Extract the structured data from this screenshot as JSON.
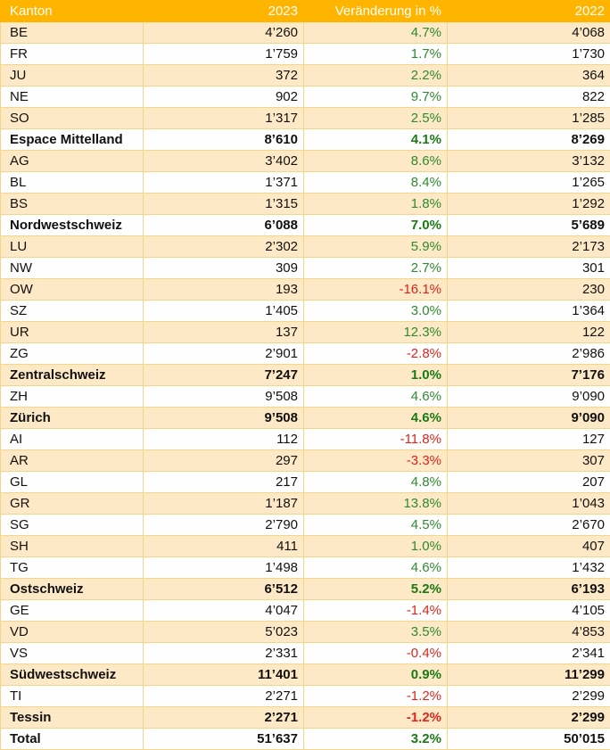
{
  "header": {
    "col1": "Kanton",
    "col2": "2023",
    "col3": "Veränderung in %",
    "col4": "2022"
  },
  "colors": {
    "header_bg": "#ffb400",
    "band": "#fde9c6",
    "positive": "#2e8b2e",
    "negative": "#e0241b"
  },
  "rows": [
    {
      "kanton": "BE",
      "y2023": "4’260",
      "change": "4.7%",
      "y2022": "4’068",
      "type": "normal",
      "sign": "pos"
    },
    {
      "kanton": "FR",
      "y2023": "1’759",
      "change": "1.7%",
      "y2022": "1’730",
      "type": "normal",
      "sign": "pos"
    },
    {
      "kanton": "JU",
      "y2023": "372",
      "change": "2.2%",
      "y2022": "364",
      "type": "normal",
      "sign": "pos"
    },
    {
      "kanton": "NE",
      "y2023": "902",
      "change": "9.7%",
      "y2022": "822",
      "type": "normal",
      "sign": "pos"
    },
    {
      "kanton": "SO",
      "y2023": "1’317",
      "change": "2.5%",
      "y2022": "1’285",
      "type": "normal",
      "sign": "pos"
    },
    {
      "kanton": "Espace Mittelland",
      "y2023": "8’610",
      "change": "4.1%",
      "y2022": "8’269",
      "type": "sub",
      "sign": "pos"
    },
    {
      "kanton": "AG",
      "y2023": "3’402",
      "change": "8.6%",
      "y2022": "3’132",
      "type": "normal",
      "sign": "pos"
    },
    {
      "kanton": "BL",
      "y2023": "1’371",
      "change": "8.4%",
      "y2022": "1’265",
      "type": "normal",
      "sign": "pos"
    },
    {
      "kanton": "BS",
      "y2023": "1’315",
      "change": "1.8%",
      "y2022": "1’292",
      "type": "normal",
      "sign": "pos"
    },
    {
      "kanton": "Nordwestschweiz",
      "y2023": "6’088",
      "change": "7.0%",
      "y2022": "5’689",
      "type": "sub",
      "sign": "pos"
    },
    {
      "kanton": "LU",
      "y2023": "2’302",
      "change": "5.9%",
      "y2022": "2’173",
      "type": "normal",
      "sign": "pos"
    },
    {
      "kanton": "NW",
      "y2023": "309",
      "change": "2.7%",
      "y2022": "301",
      "type": "normal",
      "sign": "pos"
    },
    {
      "kanton": "OW",
      "y2023": "193",
      "change": "-16.1%",
      "y2022": "230",
      "type": "normal",
      "sign": "neg"
    },
    {
      "kanton": "SZ",
      "y2023": "1’405",
      "change": "3.0%",
      "y2022": "1’364",
      "type": "normal",
      "sign": "pos"
    },
    {
      "kanton": "UR",
      "y2023": "137",
      "change": "12.3%",
      "y2022": "122",
      "type": "normal",
      "sign": "pos"
    },
    {
      "kanton": "ZG",
      "y2023": "2’901",
      "change": "-2.8%",
      "y2022": "2’986",
      "type": "normal",
      "sign": "neg"
    },
    {
      "kanton": "Zentralschweiz",
      "y2023": "7’247",
      "change": "1.0%",
      "y2022": "7’176",
      "type": "sub",
      "sign": "pos"
    },
    {
      "kanton": "ZH",
      "y2023": "9’508",
      "change": "4.6%",
      "y2022": "9’090",
      "type": "normal",
      "sign": "pos"
    },
    {
      "kanton": "Zürich",
      "y2023": "9’508",
      "change": "4.6%",
      "y2022": "9’090",
      "type": "sub",
      "sign": "pos"
    },
    {
      "kanton": "AI",
      "y2023": "112",
      "change": "-11.8%",
      "y2022": "127",
      "type": "normal",
      "sign": "neg"
    },
    {
      "kanton": "AR",
      "y2023": "297",
      "change": "-3.3%",
      "y2022": "307",
      "type": "normal",
      "sign": "neg"
    },
    {
      "kanton": "GL",
      "y2023": "217",
      "change": "4.8%",
      "y2022": "207",
      "type": "normal",
      "sign": "pos"
    },
    {
      "kanton": "GR",
      "y2023": "1’187",
      "change": "13.8%",
      "y2022": "1’043",
      "type": "normal",
      "sign": "pos"
    },
    {
      "kanton": "SG",
      "y2023": "2’790",
      "change": "4.5%",
      "y2022": "2’670",
      "type": "normal",
      "sign": "pos"
    },
    {
      "kanton": "SH",
      "y2023": "411",
      "change": "1.0%",
      "y2022": "407",
      "type": "normal",
      "sign": "pos"
    },
    {
      "kanton": "TG",
      "y2023": "1’498",
      "change": "4.6%",
      "y2022": "1’432",
      "type": "normal",
      "sign": "pos"
    },
    {
      "kanton": "Ostschweiz",
      "y2023": "6’512",
      "change": "5.2%",
      "y2022": "6’193",
      "type": "sub",
      "sign": "pos"
    },
    {
      "kanton": "GE",
      "y2023": "4’047",
      "change": "-1.4%",
      "y2022": "4’105",
      "type": "normal",
      "sign": "neg"
    },
    {
      "kanton": "VD",
      "y2023": "5’023",
      "change": "3.5%",
      "y2022": "4’853",
      "type": "normal",
      "sign": "pos"
    },
    {
      "kanton": "VS",
      "y2023": "2’331",
      "change": "-0.4%",
      "y2022": "2’341",
      "type": "normal",
      "sign": "neg"
    },
    {
      "kanton": "Südwestschweiz",
      "y2023": "11’401",
      "change": "0.9%",
      "y2022": "11’299",
      "type": "sub",
      "sign": "pos"
    },
    {
      "kanton": "TI",
      "y2023": "2’271",
      "change": "-1.2%",
      "y2022": "2’299",
      "type": "normal",
      "sign": "neg"
    },
    {
      "kanton": "Tessin",
      "y2023": "2’271",
      "change": "-1.2%",
      "y2022": "2’299",
      "type": "sub",
      "sign": "neg"
    },
    {
      "kanton": "Total",
      "y2023": "51’637",
      "change": "3.2%",
      "y2022": "50’015",
      "type": "total",
      "sign": "pos"
    }
  ]
}
